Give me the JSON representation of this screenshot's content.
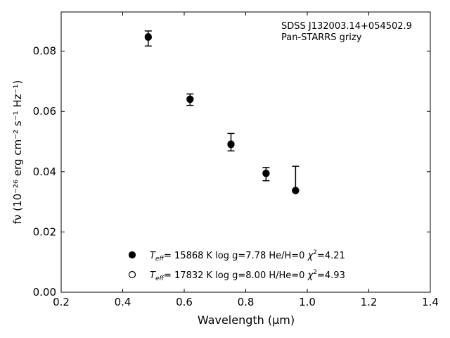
{
  "chart_data": {
    "type": "scatter",
    "xlabel": "Wavelength (μm)",
    "ylabel": "fν (10⁻²⁶ erg cm⁻² s⁻¹ Hz⁻¹)",
    "xlim": [
      0.2,
      1.4
    ],
    "ylim": [
      0.0,
      0.093
    ],
    "xticks": [
      0.2,
      0.4,
      0.6,
      0.8,
      1.0,
      1.2,
      1.4
    ],
    "xtick_labels": [
      "0.2",
      "0.4",
      "0.6",
      "0.8",
      "1.0",
      "1.2",
      "1.4"
    ],
    "yticks": [
      0.0,
      0.02,
      0.04,
      0.06,
      0.08
    ],
    "ytick_labels": [
      "0.00",
      "0.02",
      "0.04",
      "0.06",
      "0.08"
    ],
    "grid": false,
    "annotation": {
      "line1": "SDSS J132003.14+054502.9",
      "line2": "Pan-STARRS grizy"
    },
    "observed": {
      "name": "Pan-STARRS grizy",
      "x": [
        0.483,
        0.619,
        0.752,
        0.866,
        0.962
      ],
      "y": [
        0.0842,
        0.0639,
        0.0498,
        0.0392,
        0.0378
      ],
      "err": [
        0.0025,
        0.0019,
        0.0029,
        0.0022,
        0.004
      ]
    },
    "models": [
      {
        "name": "Teff= 15868 K  log g=7.78  He/H=0  χ²=4.21",
        "marker": "filled-circle",
        "x": [
          0.483,
          0.619,
          0.752,
          0.866,
          0.962
        ],
        "y": [
          0.0848,
          0.0641,
          0.0492,
          0.0395,
          0.0337
        ]
      },
      {
        "name": "Teff= 17832 K  log g=8.00  H/He=0  χ²=4.93",
        "marker": "open-circle",
        "x": [
          0.483,
          0.619,
          0.752,
          0.866,
          0.962
        ],
        "y": [
          0.0846,
          0.064,
          0.049,
          0.0394,
          0.0338
        ]
      }
    ],
    "legend": [
      {
        "marker": "filled-circle",
        "teff_label": "T",
        "teff_sub": "eff",
        "text": "= 15868 K  log g=7.78  He/H=0  ",
        "chi_label": "χ",
        "chi_sup": "2",
        "chi_value": "=4.21"
      },
      {
        "marker": "open-circle",
        "teff_label": "T",
        "teff_sub": "eff",
        "text": "= 17832 K  log g=8.00  H/He=0  ",
        "chi_label": "χ",
        "chi_sup": "2",
        "chi_value": "=4.93"
      }
    ],
    "legend_position": "lower-center"
  },
  "colors": {
    "marker": "#000000",
    "axis": "#000000",
    "background": "#ffffff"
  }
}
